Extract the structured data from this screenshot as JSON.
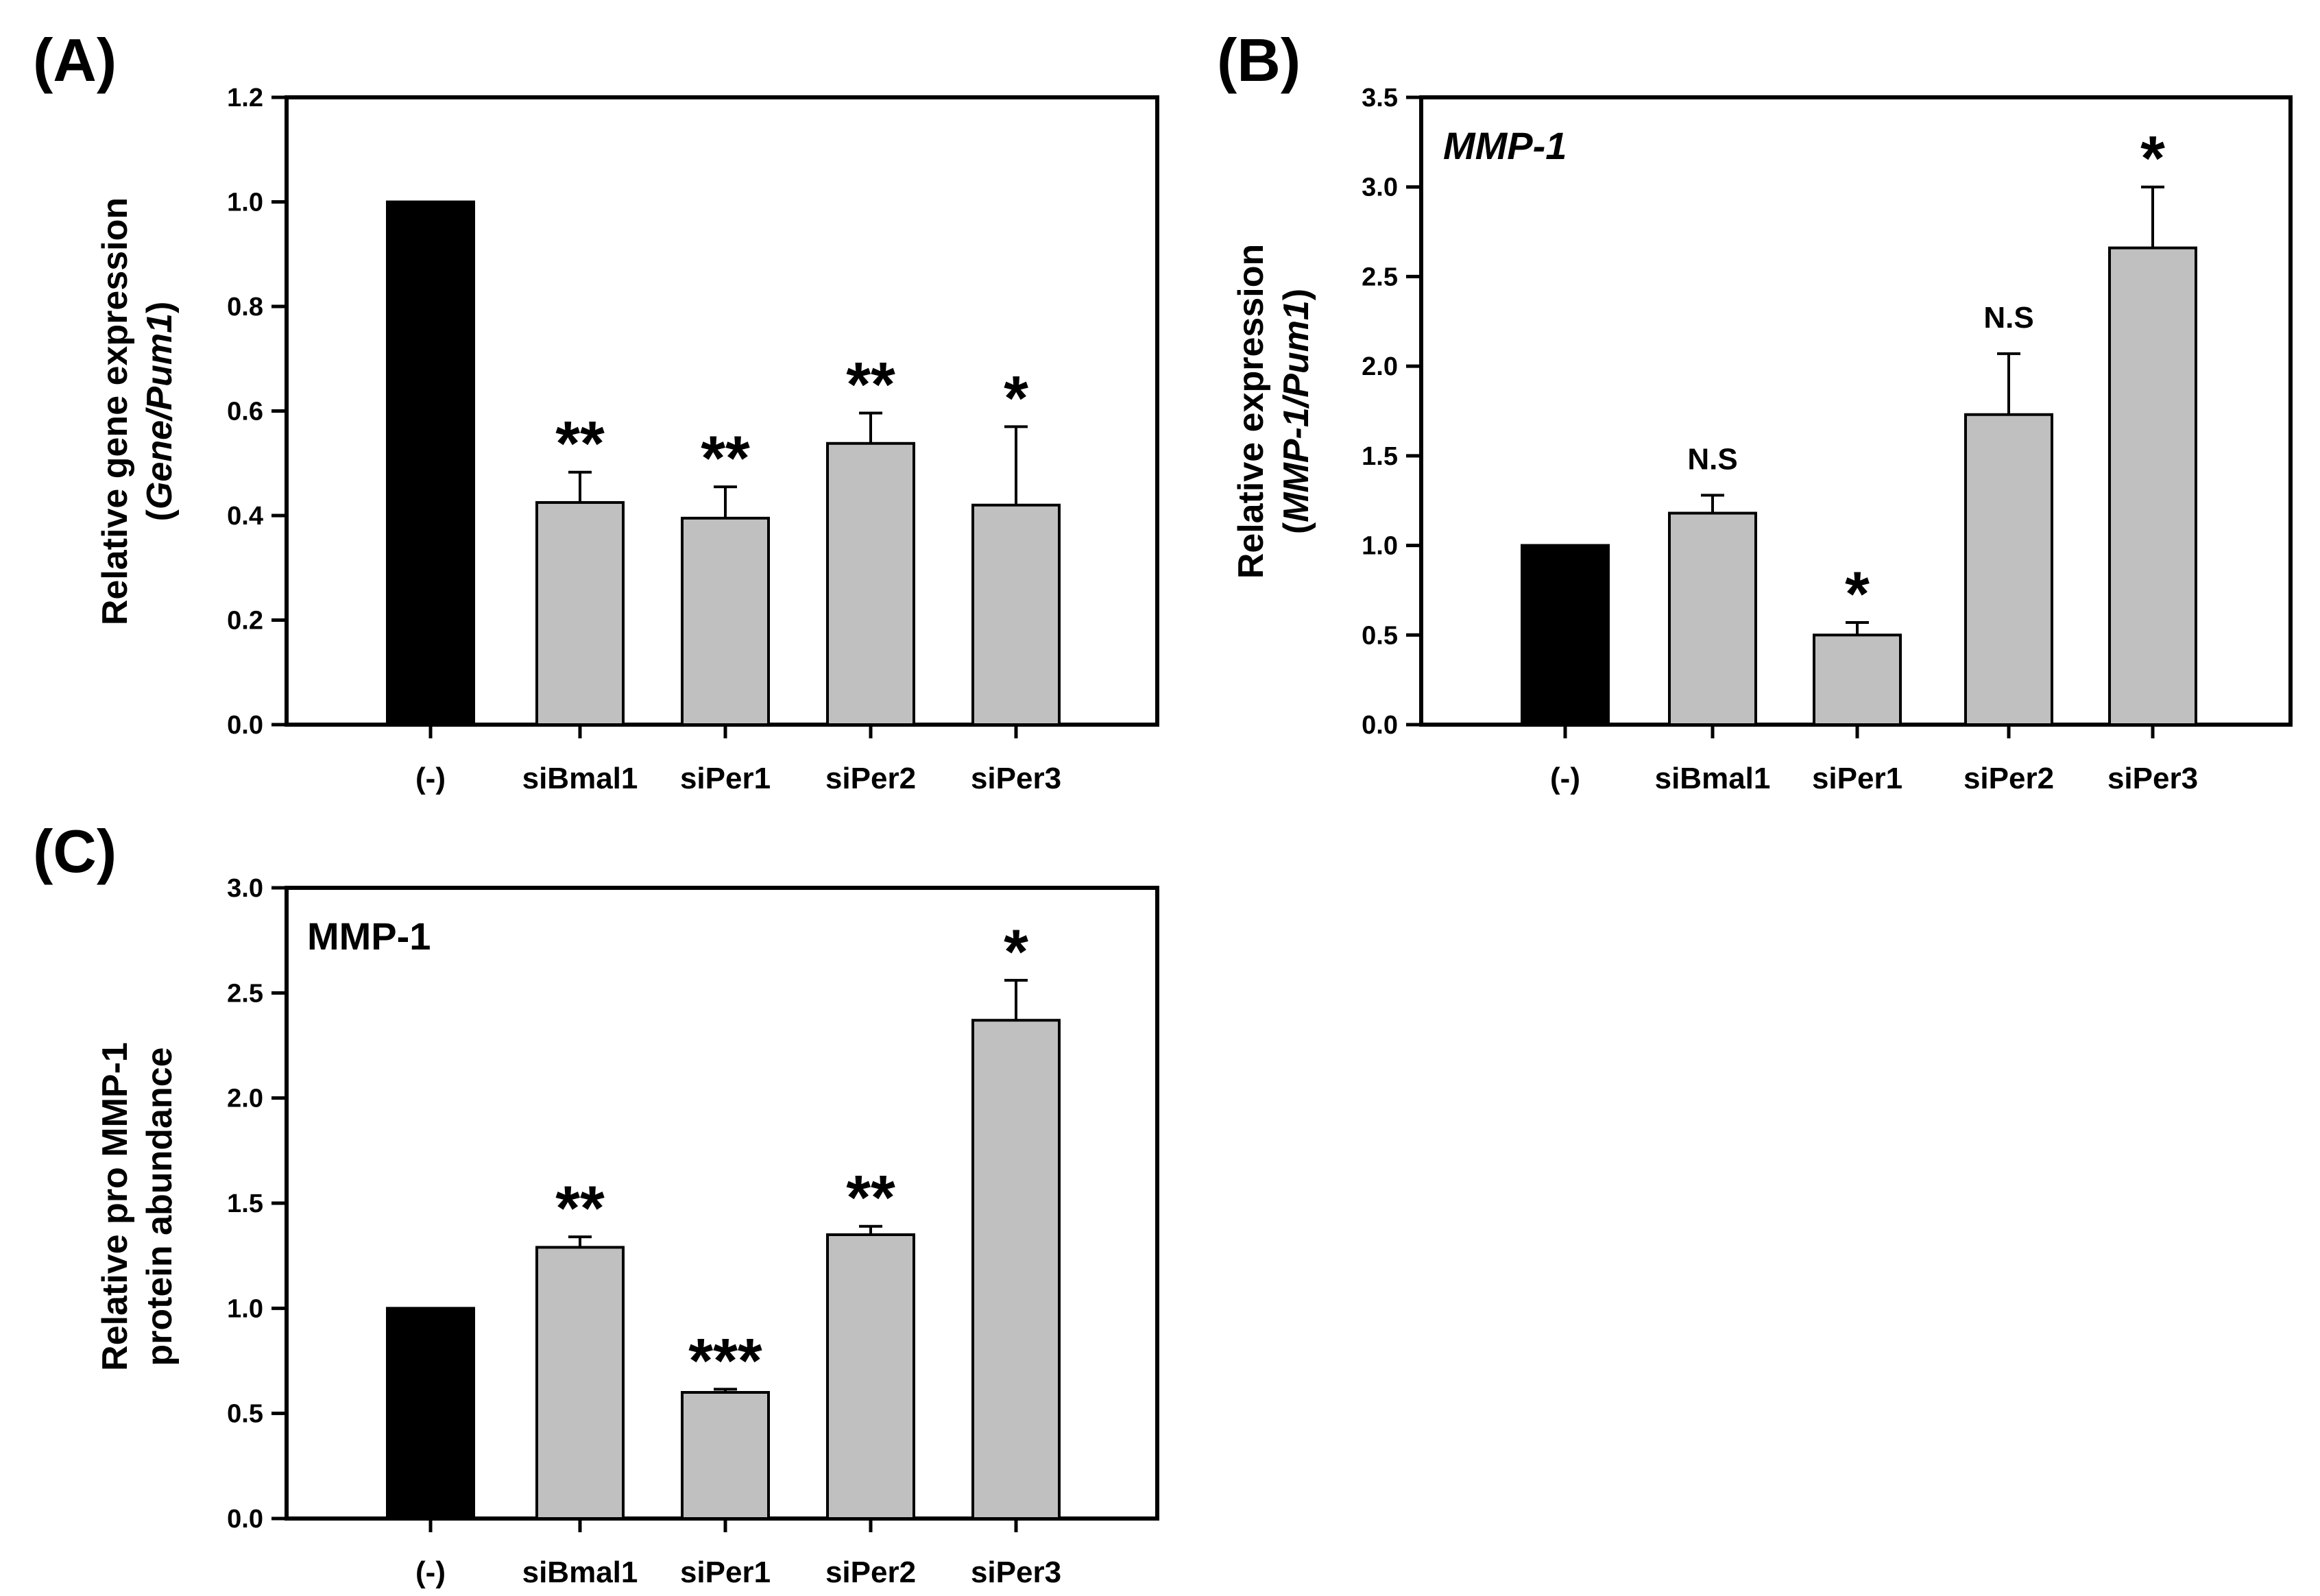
{
  "chart_data": [
    {
      "panel": "(A)",
      "type": "bar",
      "categories": [
        "(-)",
        "siBmal1",
        "siPer1",
        "siPer2",
        "siPer3"
      ],
      "values": [
        1.0,
        0.425,
        0.395,
        0.538,
        0.42
      ],
      "errors": [
        0.0,
        0.058,
        0.06,
        0.058,
        0.15
      ],
      "significance": [
        "",
        "**",
        "**",
        "**",
        "*"
      ],
      "bar_colors": [
        "#000000",
        "#c0c0c0",
        "#c0c0c0",
        "#c0c0c0",
        "#c0c0c0"
      ],
      "ylabel_lines": [
        "Relative gene expression",
        "(Gene/Pum1)"
      ],
      "inset_label": "",
      "ylim": [
        0,
        1.2
      ],
      "yticks": [
        "0.0",
        "0.2",
        "0.4",
        "0.6",
        "0.8",
        "1.0",
        "1.2"
      ],
      "grid": false
    },
    {
      "panel": "(B)",
      "type": "bar",
      "categories": [
        "(-)",
        "siBmal1",
        "siPer1",
        "siPer2",
        "siPer3"
      ],
      "values": [
        1.0,
        1.18,
        0.5,
        1.73,
        2.66
      ],
      "errors": [
        0.0,
        0.1,
        0.07,
        0.34,
        0.34
      ],
      "significance": [
        "",
        "N.S",
        "*",
        "N.S",
        "*"
      ],
      "bar_colors": [
        "#000000",
        "#c0c0c0",
        "#c0c0c0",
        "#c0c0c0",
        "#c0c0c0"
      ],
      "ylabel_lines": [
        "Relative expression",
        "(MMP-1/Pum1)"
      ],
      "inset_label": "MMP-1",
      "ylim": [
        0,
        3.5
      ],
      "yticks": [
        "0.0",
        "0.5",
        "1.0",
        "1.5",
        "2.0",
        "2.5",
        "3.0",
        "3.5"
      ],
      "grid": false
    },
    {
      "panel": "(C)",
      "type": "bar",
      "categories": [
        "(-)",
        "siBmal1",
        "siPer1",
        "siPer2",
        "siPer3"
      ],
      "values": [
        1.0,
        1.29,
        0.6,
        1.35,
        2.37
      ],
      "errors": [
        0.0,
        0.05,
        0.015,
        0.04,
        0.19
      ],
      "significance": [
        "",
        "**",
        "***",
        "**",
        "*"
      ],
      "bar_colors": [
        "#000000",
        "#c0c0c0",
        "#c0c0c0",
        "#c0c0c0",
        "#c0c0c0"
      ],
      "ylabel_lines": [
        "Relative pro MMP-1",
        "protein abundance"
      ],
      "inset_label": "MMP-1",
      "ylim": [
        0,
        3.0
      ],
      "yticks": [
        "0.0",
        "0.5",
        "1.0",
        "1.5",
        "2.0",
        "2.5",
        "3.0"
      ],
      "grid": false
    }
  ]
}
